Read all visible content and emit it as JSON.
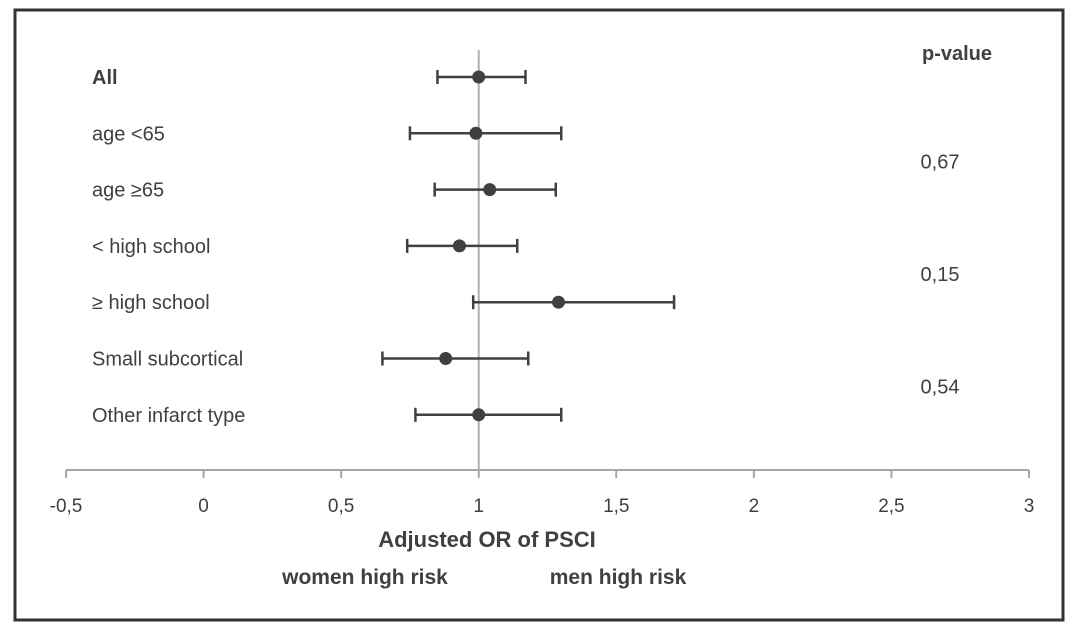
{
  "chart_data": {
    "type": "forest",
    "pvalue_header": "p-value",
    "rows": [
      {
        "label": "All",
        "bold": true,
        "estimate": 1.0,
        "ci_low": 0.85,
        "ci_high": 1.17
      },
      {
        "label": "age <65",
        "bold": false,
        "estimate": 0.99,
        "ci_low": 0.75,
        "ci_high": 1.3
      },
      {
        "label": "age ≥65",
        "bold": false,
        "estimate": 1.04,
        "ci_low": 0.84,
        "ci_high": 1.28
      },
      {
        "label": "< high school",
        "bold": false,
        "estimate": 0.93,
        "ci_low": 0.74,
        "ci_high": 1.14
      },
      {
        "label": "≥ high school",
        "bold": false,
        "estimate": 1.29,
        "ci_low": 0.98,
        "ci_high": 1.71
      },
      {
        "label": "Small subcortical",
        "bold": false,
        "estimate": 0.88,
        "ci_low": 0.65,
        "ci_high": 1.18
      },
      {
        "label": "Other infarct type",
        "bold": false,
        "estimate": 1.0,
        "ci_low": 0.77,
        "ci_high": 1.3
      }
    ],
    "pvalues": [
      {
        "value": "0,67",
        "rows": [
          1,
          2
        ]
      },
      {
        "value": "0,15",
        "rows": [
          3,
          4
        ]
      },
      {
        "value": "0,54",
        "rows": [
          5,
          6
        ]
      }
    ],
    "xlim": [
      -0.5,
      3
    ],
    "xticks": [
      {
        "value": -0.5,
        "label": "-0,5"
      },
      {
        "value": 0,
        "label": "0"
      },
      {
        "value": 0.5,
        "label": "0,5"
      },
      {
        "value": 1,
        "label": "1"
      },
      {
        "value": 1.5,
        "label": "1,5"
      },
      {
        "value": 2,
        "label": "2"
      },
      {
        "value": 2.5,
        "label": "2,5"
      },
      {
        "value": 3,
        "label": "3"
      }
    ],
    "reference_line": 1,
    "xlabel": "Adjusted OR of PSCI",
    "left_direction_label": "women high risk",
    "right_direction_label": "men high risk",
    "colors": {
      "marker": "#404040",
      "reference": "#b0b0b0",
      "axis": "#a6a6a6",
      "text": "#404040",
      "frame": "#333333"
    }
  }
}
